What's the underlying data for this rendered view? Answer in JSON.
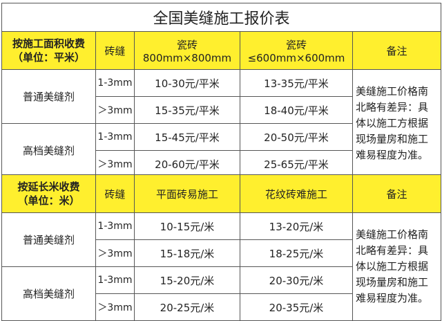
{
  "tables": [
    {
      "title": "全国美缝施工报价表",
      "header": [
        "按施工面积收费",
        "（单位：平米）",
        "砖缝",
        "瓷砖800mm×800mm",
        "瓷砖≤600mm×600mm",
        "备注"
      ],
      "groups": [
        {
          "name": "普通美缝剂",
          "rows": [
            {
              "gap": "1-3mm",
              "a": "10-30元/平米",
              "b": "13-35元/平米"
            },
            {
              "gap": "＞3mm",
              "a": "15-35元/平米",
              "b": "18-40元/平米"
            }
          ]
        },
        {
          "name": "高档美缝剂",
          "rows": [
            {
              "gap": "1-3mm",
              "a": "15-45元/平米",
              "b": "20-50元/平米"
            },
            {
              "gap": "＞3mm",
              "a": "20-60元/平米",
              "b": "25-65元/平米"
            }
          ]
        }
      ],
      "note": "美缝施工价格南北略有差异：具体以施工方根据现场量房和施工难易程度为准。"
    },
    {
      "header": [
        "按延长米收费",
        "（单位：米）",
        "砖缝",
        "平面砖易施工",
        "花纹砖难施工",
        "备注"
      ],
      "groups": [
        {
          "name": "普通美缝剂",
          "rows": [
            {
              "gap": "1-3mm",
              "a": "10-15元/米",
              "b": "13-20元/米"
            },
            {
              "gap": "＞3mm",
              "a": "15-18元/米",
              "b": "18-25元/米"
            }
          ]
        },
        {
          "name": "高档美缝剂",
          "rows": [
            {
              "gap": "1-3mm",
              "a": "15-20元/米",
              "b": "20-30元/米"
            },
            {
              "gap": "＞3mm",
              "a": "20-25元/米",
              "b": "20-35元/米"
            }
          ]
        }
      ],
      "note": "美缝施工价格南北略有差异：具体以施工方根据现场量房和施工难易程度为准。"
    }
  ],
  "colors": {
    "header_bg": "#ffef2e",
    "border": "#555555"
  }
}
